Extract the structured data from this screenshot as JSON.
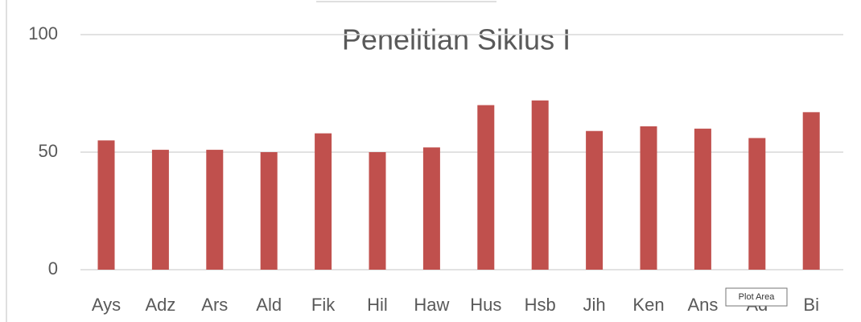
{
  "chart_data": {
    "type": "bar",
    "title": "Penelitian Siklus I",
    "categories": [
      "Ays",
      "Adz",
      "Ars",
      "Ald",
      "Fik",
      "Hil",
      "Haw",
      "Hus",
      "Hsb",
      "Jih",
      "Ken",
      "Ans",
      "Ad",
      "Bi"
    ],
    "values": [
      55,
      51,
      51,
      50,
      58,
      50,
      52,
      70,
      72,
      59,
      61,
      60,
      56,
      67
    ],
    "color": "#c0504d",
    "ylim": [
      0,
      100
    ],
    "yticks": [
      0,
      50,
      100
    ],
    "grid": true
  },
  "tooltip": "Plot Area"
}
